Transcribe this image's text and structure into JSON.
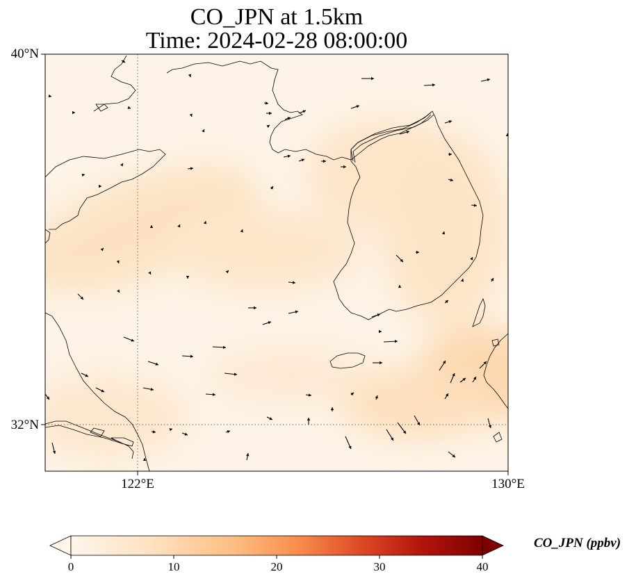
{
  "title": {
    "line1": "CO_JPN at 1.5km",
    "line2": "Time: 2024-02-28 08:00:00"
  },
  "map": {
    "lat_range": [
      31.2,
      40.0
    ],
    "lon_range": [
      120.0,
      130.0
    ],
    "gridlines": {
      "lat": 32,
      "lon": 122,
      "style": "dotted"
    },
    "y_ticks": [
      "40°N",
      "32°N"
    ],
    "x_ticks": [
      "122°E",
      "130°E"
    ],
    "background_color": "#fdf3e6",
    "plume_color": "#fbdcb4",
    "coast_color": "#000000"
  },
  "colorbar": {
    "label": "CO_JPN (ppbv)",
    "ticks": [
      "0",
      "10",
      "20",
      "30",
      "40"
    ],
    "range": [
      0,
      40
    ],
    "colormap": [
      "#fff5eb",
      "#fdd9ac",
      "#fd9850",
      "#e5530f",
      "#a31a04",
      "#7f0000"
    ],
    "extend": "both"
  }
}
